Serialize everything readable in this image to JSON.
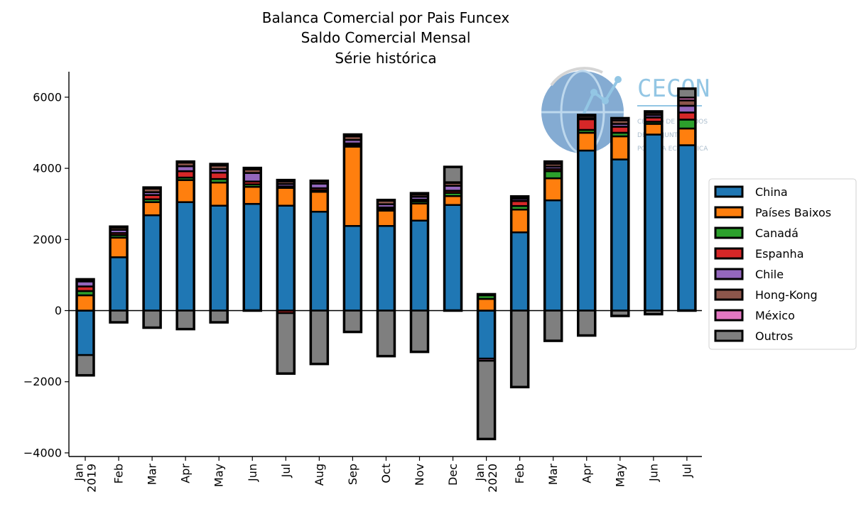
{
  "chart_data": {
    "type": "bar",
    "stacked": true,
    "title_lines": [
      "Balanca Comercial por Pais Funcex",
      "Saldo Comercial Mensal",
      "Série histórica"
    ],
    "xlabel": "",
    "ylabel": "",
    "ylim": [
      -4100,
      6700
    ],
    "yticks": [
      -4000,
      -2000,
      0,
      2000,
      4000,
      6000
    ],
    "categories": [
      "Jan\n2019",
      "Feb",
      "Mar",
      "Apr",
      "May",
      "Jun",
      "Jul",
      "Aug",
      "Sep",
      "Oct",
      "Nov",
      "Dec",
      "Jan\n2020",
      "Feb",
      "Mar",
      "Apr",
      "May",
      "Jun",
      "Jul"
    ],
    "legend_position": "right",
    "grid": false,
    "series": [
      {
        "name": "China",
        "color": "#1f77b4",
        "values": [
          -1250,
          1500,
          2680,
          3050,
          2950,
          3000,
          2950,
          2780,
          2380,
          2380,
          2530,
          2970,
          -1350,
          2200,
          3100,
          4500,
          4250,
          4950,
          4650
        ]
      },
      {
        "name": "Países Baixos",
        "color": "#ff7f0e",
        "values": [
          430,
          550,
          370,
          620,
          650,
          480,
          500,
          560,
          2230,
          430,
          480,
          250,
          330,
          640,
          620,
          500,
          650,
          300,
          470
        ]
      },
      {
        "name": "Canadá",
        "color": "#2ca02c",
        "values": [
          120,
          70,
          80,
          70,
          100,
          70,
          40,
          40,
          40,
          50,
          60,
          90,
          100,
          100,
          200,
          80,
          100,
          60,
          250
        ]
      },
      {
        "name": "Espanha",
        "color": "#d62728",
        "values": [
          130,
          60,
          120,
          180,
          180,
          80,
          -70,
          60,
          50,
          40,
          50,
          60,
          30,
          140,
          60,
          300,
          170,
          120,
          200
        ]
      },
      {
        "name": "Chile",
        "color": "#9467bd",
        "values": [
          140,
          90,
          80,
          140,
          100,
          240,
          70,
          130,
          100,
          90,
          80,
          140,
          0,
          60,
          70,
          30,
          80,
          70,
          190
        ]
      },
      {
        "name": "Hong-Kong",
        "color": "#8c564b",
        "values": [
          40,
          60,
          100,
          100,
          100,
          100,
          70,
          60,
          100,
          100,
          60,
          80,
          0,
          50,
          80,
          60,
          100,
          60,
          150
        ]
      },
      {
        "name": "México",
        "color": "#e377c2",
        "values": [
          20,
          30,
          30,
          30,
          40,
          40,
          40,
          20,
          50,
          20,
          40,
          20,
          -60,
          20,
          60,
          30,
          60,
          40,
          80
        ]
      },
      {
        "name": "Outros",
        "color": "#7f7f7f",
        "values": [
          -570,
          -330,
          -480,
          -520,
          -330,
          0,
          -1700,
          -1500,
          -600,
          -1280,
          -1160,
          430,
          -2200,
          -2150,
          -850,
          -700,
          -150,
          -100,
          250
        ]
      }
    ],
    "watermark": {
      "title": "CECON",
      "subtitle_lines": [
        "CENTRO DE ESTUDOS",
        "DE CONJUNTURA E",
        "POLÍTICA ECONÔMICA"
      ]
    }
  }
}
